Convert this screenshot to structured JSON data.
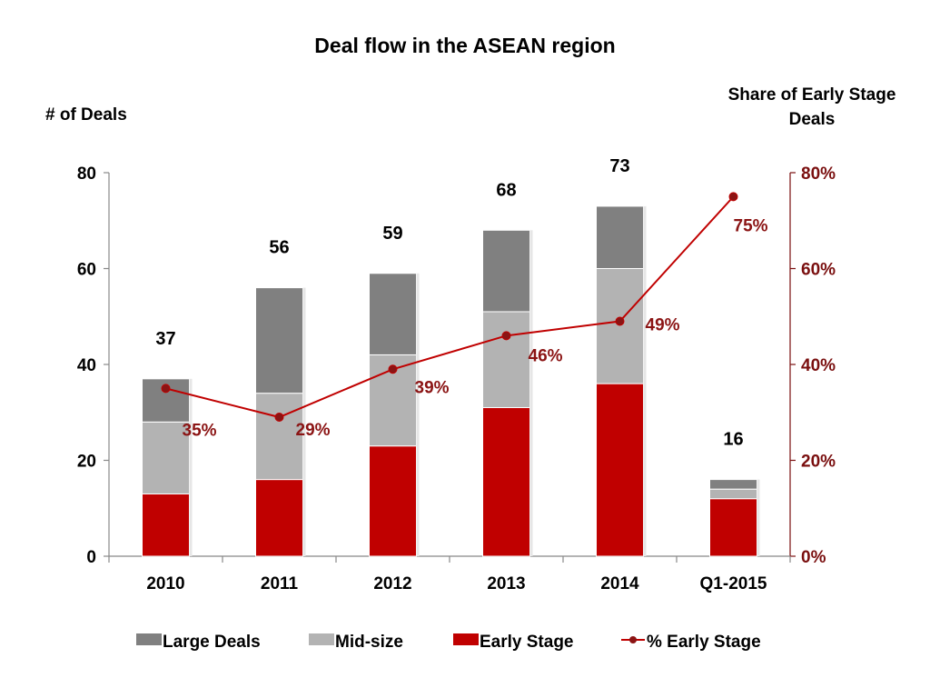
{
  "chart_data": {
    "type": "bar",
    "stacked": true,
    "title": "Deal flow in the ASEAN region",
    "ylabel": "# of Deals",
    "y2label_line1": "Share of Early Stage",
    "y2label_line2": "Deals",
    "categories": [
      "2010",
      "2011",
      "2012",
      "2013",
      "2014",
      "Q1-2015"
    ],
    "ylim": [
      0,
      80
    ],
    "yticks": [
      0,
      20,
      40,
      60,
      80
    ],
    "y2lim": [
      0,
      80
    ],
    "y2ticks": [
      "0%",
      "20%",
      "40%",
      "60%",
      "80%"
    ],
    "y2tick_values": [
      0,
      20,
      40,
      60,
      80
    ],
    "series": [
      {
        "name": "Early Stage",
        "color": "#c00000",
        "values": [
          13,
          16,
          23,
          31,
          36,
          12
        ]
      },
      {
        "name": "Mid-size",
        "color": "#b3b3b3",
        "values": [
          15,
          18,
          19,
          20,
          24,
          2
        ]
      },
      {
        "name": "Large Deals",
        "color": "#808080",
        "values": [
          9,
          22,
          17,
          17,
          13,
          2
        ]
      }
    ],
    "totals": [
      37,
      56,
      59,
      68,
      73,
      16
    ],
    "total_labels": [
      "37",
      "56",
      "59",
      "68",
      "73",
      "16"
    ],
    "line_series": {
      "name": "% Early Stage",
      "color": "#c00000",
      "values": [
        35,
        29,
        39,
        46,
        49,
        75
      ],
      "labels": [
        "35%",
        "29%",
        "39%",
        "46%",
        "49%",
        "75%"
      ]
    },
    "legend": [
      "Large Deals",
      "Mid-size",
      "Early Stage",
      "% Early Stage"
    ],
    "legend_position": "bottom"
  }
}
